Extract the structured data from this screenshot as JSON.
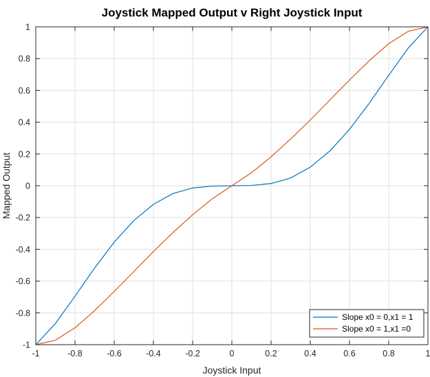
{
  "chart_data": {
    "type": "line",
    "title": "Joystick Mapped Output v Right Joystick Input",
    "xlabel": "Joystick Input",
    "ylabel": "Mapped Output",
    "xlim": [
      -1,
      1
    ],
    "ylim": [
      -1,
      1
    ],
    "xticks": [
      "-1",
      "-0.8",
      "-0.6",
      "-0.4",
      "-0.2",
      "0",
      "0.2",
      "0.4",
      "0.6",
      "0.8",
      "1"
    ],
    "yticks": [
      "-1",
      "-0.8",
      "-0.6",
      "-0.4",
      "-0.2",
      "0",
      "0.2",
      "0.4",
      "0.6",
      "0.8",
      "1"
    ],
    "xtick_values": [
      -1,
      -0.8,
      -0.6,
      -0.4,
      -0.2,
      0,
      0.2,
      0.4,
      0.6,
      0.8,
      1
    ],
    "ytick_values": [
      -1,
      -0.8,
      -0.6,
      -0.4,
      -0.2,
      0,
      0.2,
      0.4,
      0.6,
      0.8,
      1
    ],
    "grid": true,
    "legend_position": "bottom-right",
    "x": [
      -1,
      -0.9,
      -0.8,
      -0.7,
      -0.6,
      -0.5,
      -0.4,
      -0.3,
      -0.2,
      -0.1,
      0,
      0.1,
      0.2,
      0.3,
      0.4,
      0.5,
      0.6,
      0.7,
      0.8,
      0.9,
      1
    ],
    "series": [
      {
        "name": "Slope x0 = 0,x1 = 1",
        "color": "#0072BD",
        "values": [
          -1,
          -0.867,
          -0.695,
          -0.518,
          -0.355,
          -0.219,
          -0.117,
          -0.049,
          -0.014,
          -0.002,
          0,
          0.002,
          0.014,
          0.049,
          0.117,
          0.219,
          0.355,
          0.518,
          0.695,
          0.867,
          1
        ]
      },
      {
        "name": "Slope x0 = 1,x1 =0",
        "color": "#D95319",
        "values": [
          -1,
          -0.972,
          -0.894,
          -0.786,
          -0.665,
          -0.54,
          -0.414,
          -0.294,
          -0.182,
          -0.082,
          0,
          0.082,
          0.182,
          0.294,
          0.414,
          0.54,
          0.665,
          0.786,
          0.894,
          0.972,
          1
        ]
      }
    ]
  }
}
